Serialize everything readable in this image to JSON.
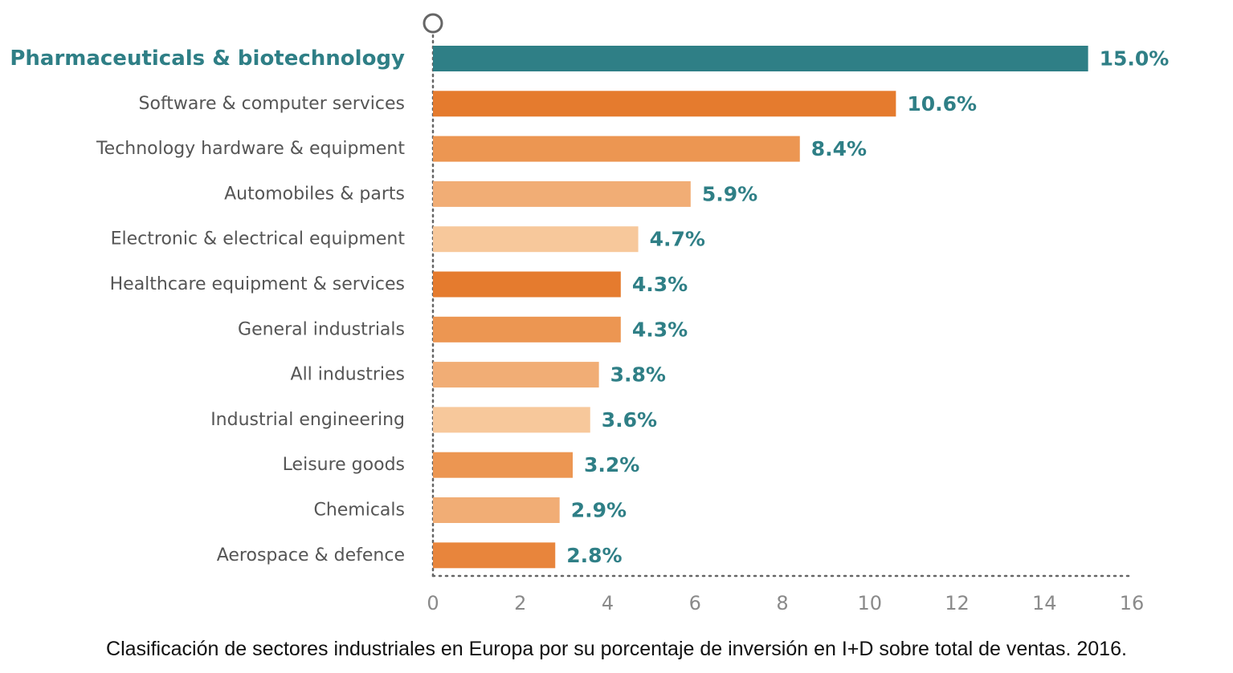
{
  "caption": "Clasificación de sectores industriales en Europa por su porcentaje de inversión en I+D sobre total de ventas. 2016.",
  "colors": {
    "highlight": "#2f7f86",
    "label_text": "#555555",
    "tick_text": "#8a8a8a",
    "axis_dots": "#666666"
  },
  "chart_data": {
    "type": "bar",
    "orientation": "horizontal",
    "title": "",
    "xlabel": "",
    "ylabel": "",
    "xlim": [
      0,
      16
    ],
    "xticks": [
      0,
      2,
      4,
      6,
      8,
      10,
      12,
      14,
      16
    ],
    "grid": false,
    "categories": [
      "Pharmaceuticals & biotechnology",
      "Software & computer services",
      "Technology hardware & equipment",
      "Automobiles & parts",
      "Electronic & electrical equipment",
      "Healthcare equipment & services",
      "General industrials",
      "All industries",
      "Industrial engineering",
      "Leisure goods",
      "Chemicals",
      "Aerospace & defence"
    ],
    "values": [
      15.0,
      10.6,
      8.4,
      5.9,
      4.7,
      4.3,
      4.3,
      3.8,
      3.6,
      3.2,
      2.9,
      2.8
    ],
    "value_labels": [
      "15.0%",
      "10.6%",
      "8.4%",
      "5.9%",
      "4.7%",
      "4.3%",
      "4.3%",
      "3.8%",
      "3.6%",
      "3.2%",
      "2.9%",
      "2.8%"
    ],
    "bar_colors": [
      "#2f7f86",
      "#e57b2e",
      "#ec9652",
      "#f1ad75",
      "#f7c89b",
      "#e57b2e",
      "#ec9652",
      "#f1ad75",
      "#f7c89b",
      "#ec9652",
      "#f1ad75",
      "#e8853c"
    ],
    "highlight_index": 0
  }
}
